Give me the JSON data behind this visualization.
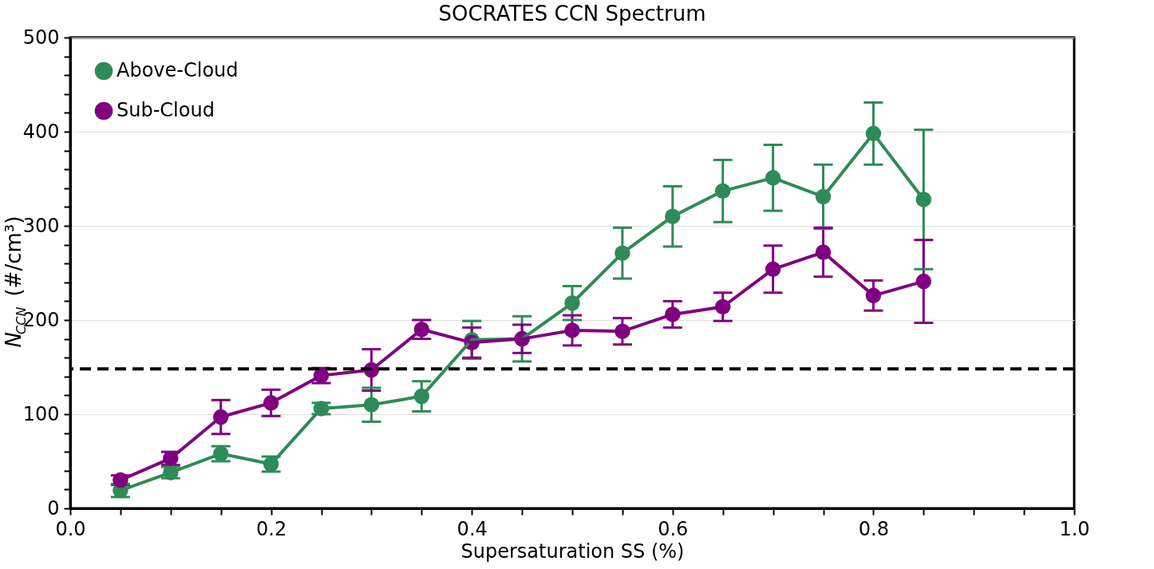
{
  "chart_data": {
    "type": "line",
    "title": "SOCRATES CCN Spectrum",
    "xlabel": "Supersaturation SS (%)",
    "ylabel": "N$_{CCN}$ (#/cm³)",
    "x": [
      0.05,
      0.1,
      0.15,
      0.2,
      0.25,
      0.3,
      0.35,
      0.4,
      0.45,
      0.5,
      0.55,
      0.6,
      0.65,
      0.7,
      0.75,
      0.8,
      0.85
    ],
    "series": [
      {
        "name": "Above-Cloud",
        "color": "#2e8b57",
        "values": [
          19,
          38,
          58,
          47,
          106,
          110,
          119,
          179,
          180,
          218,
          271,
          310,
          337,
          351,
          331,
          398,
          328
        ],
        "errors": [
          7,
          6,
          8,
          8,
          6,
          18,
          16,
          20,
          24,
          18,
          27,
          32,
          33,
          35,
          34,
          33,
          74
        ]
      },
      {
        "name": "Sub-Cloud",
        "color": "#800080",
        "values": [
          30,
          53,
          97,
          112,
          141,
          147,
          190,
          176,
          180,
          189,
          188,
          206,
          214,
          254,
          272,
          226,
          241
        ],
        "errors": [
          5,
          7,
          18,
          14,
          8,
          22,
          10,
          16,
          15,
          16,
          14,
          14,
          15,
          25,
          26,
          16,
          44
        ]
      }
    ],
    "xlim": [
      0.0,
      1.0
    ],
    "xticks": [
      {
        "value": 0.0,
        "label": "0.0"
      },
      {
        "value": 0.05,
        "label": null
      },
      {
        "value": 0.1,
        "label": null
      },
      {
        "value": 0.15,
        "label": null
      },
      {
        "value": 0.2,
        "label": "0.2"
      },
      {
        "value": 0.25,
        "label": null
      },
      {
        "value": 0.3,
        "label": null
      },
      {
        "value": 0.35,
        "label": null
      },
      {
        "value": 0.4,
        "label": "0.4"
      },
      {
        "value": 0.45,
        "label": null
      },
      {
        "value": 0.5,
        "label": null
      },
      {
        "value": 0.55,
        "label": null
      },
      {
        "value": 0.6,
        "label": "0.6"
      },
      {
        "value": 0.65,
        "label": null
      },
      {
        "value": 0.7,
        "label": null
      },
      {
        "value": 0.75,
        "label": null
      },
      {
        "value": 0.8,
        "label": "0.8"
      },
      {
        "value": 0.85,
        "label": null
      },
      {
        "value": 0.9,
        "label": null
      },
      {
        "value": 0.95,
        "label": null
      },
      {
        "value": 1.0,
        "label": "1.0"
      }
    ],
    "ylim": [
      0,
      500
    ],
    "yticks": [
      0,
      {
        "value": 20,
        "label": null
      },
      {
        "value": 40,
        "label": null
      },
      {
        "value": 60,
        "label": null
      },
      {
        "value": 80,
        "label": null
      },
      100,
      {
        "value": 120,
        "label": null
      },
      {
        "value": 140,
        "label": null
      },
      {
        "value": 160,
        "label": null
      },
      {
        "value": 180,
        "label": null
      },
      200,
      {
        "value": 220,
        "label": null
      },
      {
        "value": 240,
        "label": null
      },
      {
        "value": 260,
        "label": null
      },
      {
        "value": 280,
        "label": null
      },
      300,
      {
        "value": 320,
        "label": null
      },
      {
        "value": 340,
        "label": null
      },
      {
        "value": 360,
        "label": null
      },
      {
        "value": 380,
        "label": null
      },
      400,
      {
        "value": 420,
        "label": null
      },
      {
        "value": 440,
        "label": null
      },
      {
        "value": 460,
        "label": null
      },
      {
        "value": 480,
        "label": null
      },
      500
    ],
    "ref_lines": [
      {
        "axis": "y",
        "value": 148,
        "color": "#000000",
        "line_style": "dashed"
      }
    ],
    "grid": "y",
    "legend": "top left",
    "marker": "circle",
    "line_style": "solid"
  }
}
